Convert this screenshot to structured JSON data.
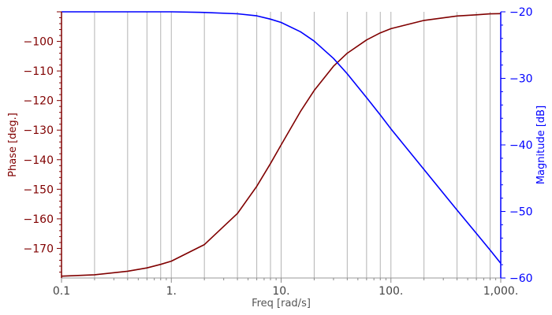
{
  "chart_data": {
    "type": "line",
    "xlabel": "Freq [rad/s]",
    "ylabel_left": "Phase [deg.]",
    "ylabel_right": "Magnitude [dB]",
    "x_scale": "log",
    "xlim": [
      0.1,
      1000
    ],
    "ylim_left": [
      -180,
      -90
    ],
    "ylim_right": [
      -60,
      -20
    ],
    "x_tick_labels": [
      {
        "value": 0.1,
        "label": "0.1"
      },
      {
        "value": 1,
        "label": "1."
      },
      {
        "value": 10,
        "label": "10."
      },
      {
        "value": 100,
        "label": "100."
      },
      {
        "value": 1000,
        "label": "1,000."
      }
    ],
    "y_left_tick_labels": [
      {
        "value": -100,
        "label": "−100"
      },
      {
        "value": -110,
        "label": "−110"
      },
      {
        "value": -120,
        "label": "−120"
      },
      {
        "value": -130,
        "label": "−130"
      },
      {
        "value": -140,
        "label": "−140"
      },
      {
        "value": -150,
        "label": "−150"
      },
      {
        "value": -160,
        "label": "−160"
      },
      {
        "value": -170,
        "label": "−170"
      }
    ],
    "y_right_tick_labels": [
      {
        "value": -20,
        "label": "−20"
      },
      {
        "value": -30,
        "label": "−30"
      },
      {
        "value": -40,
        "label": "−40"
      },
      {
        "value": -50,
        "label": "−50"
      },
      {
        "value": -60,
        "label": "−60"
      }
    ],
    "gridlines_x": [
      0.2,
      0.4,
      0.6,
      0.8,
      1,
      2,
      4,
      6,
      8,
      10,
      20,
      40,
      60,
      80,
      100,
      200,
      400,
      600,
      800
    ],
    "grid": true,
    "series": [
      {
        "axis": "left",
        "color": "#800000",
        "x": [
          0.1,
          0.2,
          0.4,
          0.6,
          0.8,
          1,
          2,
          4,
          6,
          8,
          10,
          15,
          20,
          30,
          40,
          60,
          80,
          100,
          200,
          400,
          600,
          800,
          1000
        ],
        "y": [
          -179.4,
          -178.9,
          -177.7,
          -176.6,
          -175.4,
          -174.3,
          -168.7,
          -158.2,
          -149.0,
          -141.3,
          -135.0,
          -123.7,
          -116.6,
          -108.4,
          -104.0,
          -99.5,
          -97.1,
          -95.7,
          -92.9,
          -91.4,
          -91.0,
          -90.7,
          -90.6
        ]
      },
      {
        "axis": "right",
        "color": "#0000ff",
        "x": [
          0.1,
          0.2,
          0.4,
          0.6,
          0.8,
          1,
          2,
          4,
          6,
          8,
          10,
          15,
          20,
          30,
          40,
          60,
          80,
          100,
          200,
          400,
          600,
          800,
          1000
        ],
        "y": [
          -20.0,
          -20.0,
          -20.0,
          -20.0,
          -20.0,
          -20.0,
          -20.1,
          -20.3,
          -20.6,
          -21.1,
          -21.6,
          -23.0,
          -24.4,
          -27.0,
          -29.3,
          -32.9,
          -35.5,
          -37.6,
          -43.7,
          -49.8,
          -53.3,
          -55.8,
          -57.8
        ]
      }
    ]
  }
}
